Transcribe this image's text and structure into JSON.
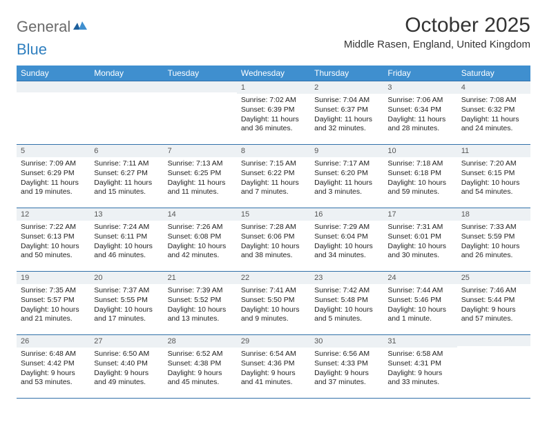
{
  "logo": {
    "part1": "General",
    "part2": "Blue"
  },
  "title": "October 2025",
  "location": "Middle Rasen, England, United Kingdom",
  "colors": {
    "header_bg": "#3f8fcf",
    "header_text": "#ffffff",
    "border": "#2f6fa8",
    "daynum_bg": "#edf1f4",
    "text": "#222222",
    "logo_gray": "#6a6a6a",
    "logo_blue": "#2f7fbf"
  },
  "typography": {
    "title_fontsize": 30,
    "location_fontsize": 15,
    "dayheader_fontsize": 12,
    "body_fontsize": 10.5
  },
  "day_headers": [
    "Sunday",
    "Monday",
    "Tuesday",
    "Wednesday",
    "Thursday",
    "Friday",
    "Saturday"
  ],
  "weeks": [
    [
      {
        "n": "",
        "sunrise": "",
        "sunset": "",
        "daylight": ""
      },
      {
        "n": "",
        "sunrise": "",
        "sunset": "",
        "daylight": ""
      },
      {
        "n": "",
        "sunrise": "",
        "sunset": "",
        "daylight": ""
      },
      {
        "n": "1",
        "sunrise": "Sunrise: 7:02 AM",
        "sunset": "Sunset: 6:39 PM",
        "daylight": "Daylight: 11 hours and 36 minutes."
      },
      {
        "n": "2",
        "sunrise": "Sunrise: 7:04 AM",
        "sunset": "Sunset: 6:37 PM",
        "daylight": "Daylight: 11 hours and 32 minutes."
      },
      {
        "n": "3",
        "sunrise": "Sunrise: 7:06 AM",
        "sunset": "Sunset: 6:34 PM",
        "daylight": "Daylight: 11 hours and 28 minutes."
      },
      {
        "n": "4",
        "sunrise": "Sunrise: 7:08 AM",
        "sunset": "Sunset: 6:32 PM",
        "daylight": "Daylight: 11 hours and 24 minutes."
      }
    ],
    [
      {
        "n": "5",
        "sunrise": "Sunrise: 7:09 AM",
        "sunset": "Sunset: 6:29 PM",
        "daylight": "Daylight: 11 hours and 19 minutes."
      },
      {
        "n": "6",
        "sunrise": "Sunrise: 7:11 AM",
        "sunset": "Sunset: 6:27 PM",
        "daylight": "Daylight: 11 hours and 15 minutes."
      },
      {
        "n": "7",
        "sunrise": "Sunrise: 7:13 AM",
        "sunset": "Sunset: 6:25 PM",
        "daylight": "Daylight: 11 hours and 11 minutes."
      },
      {
        "n": "8",
        "sunrise": "Sunrise: 7:15 AM",
        "sunset": "Sunset: 6:22 PM",
        "daylight": "Daylight: 11 hours and 7 minutes."
      },
      {
        "n": "9",
        "sunrise": "Sunrise: 7:17 AM",
        "sunset": "Sunset: 6:20 PM",
        "daylight": "Daylight: 11 hours and 3 minutes."
      },
      {
        "n": "10",
        "sunrise": "Sunrise: 7:18 AM",
        "sunset": "Sunset: 6:18 PM",
        "daylight": "Daylight: 10 hours and 59 minutes."
      },
      {
        "n": "11",
        "sunrise": "Sunrise: 7:20 AM",
        "sunset": "Sunset: 6:15 PM",
        "daylight": "Daylight: 10 hours and 54 minutes."
      }
    ],
    [
      {
        "n": "12",
        "sunrise": "Sunrise: 7:22 AM",
        "sunset": "Sunset: 6:13 PM",
        "daylight": "Daylight: 10 hours and 50 minutes."
      },
      {
        "n": "13",
        "sunrise": "Sunrise: 7:24 AM",
        "sunset": "Sunset: 6:11 PM",
        "daylight": "Daylight: 10 hours and 46 minutes."
      },
      {
        "n": "14",
        "sunrise": "Sunrise: 7:26 AM",
        "sunset": "Sunset: 6:08 PM",
        "daylight": "Daylight: 10 hours and 42 minutes."
      },
      {
        "n": "15",
        "sunrise": "Sunrise: 7:28 AM",
        "sunset": "Sunset: 6:06 PM",
        "daylight": "Daylight: 10 hours and 38 minutes."
      },
      {
        "n": "16",
        "sunrise": "Sunrise: 7:29 AM",
        "sunset": "Sunset: 6:04 PM",
        "daylight": "Daylight: 10 hours and 34 minutes."
      },
      {
        "n": "17",
        "sunrise": "Sunrise: 7:31 AM",
        "sunset": "Sunset: 6:01 PM",
        "daylight": "Daylight: 10 hours and 30 minutes."
      },
      {
        "n": "18",
        "sunrise": "Sunrise: 7:33 AM",
        "sunset": "Sunset: 5:59 PM",
        "daylight": "Daylight: 10 hours and 26 minutes."
      }
    ],
    [
      {
        "n": "19",
        "sunrise": "Sunrise: 7:35 AM",
        "sunset": "Sunset: 5:57 PM",
        "daylight": "Daylight: 10 hours and 21 minutes."
      },
      {
        "n": "20",
        "sunrise": "Sunrise: 7:37 AM",
        "sunset": "Sunset: 5:55 PM",
        "daylight": "Daylight: 10 hours and 17 minutes."
      },
      {
        "n": "21",
        "sunrise": "Sunrise: 7:39 AM",
        "sunset": "Sunset: 5:52 PM",
        "daylight": "Daylight: 10 hours and 13 minutes."
      },
      {
        "n": "22",
        "sunrise": "Sunrise: 7:41 AM",
        "sunset": "Sunset: 5:50 PM",
        "daylight": "Daylight: 10 hours and 9 minutes."
      },
      {
        "n": "23",
        "sunrise": "Sunrise: 7:42 AM",
        "sunset": "Sunset: 5:48 PM",
        "daylight": "Daylight: 10 hours and 5 minutes."
      },
      {
        "n": "24",
        "sunrise": "Sunrise: 7:44 AM",
        "sunset": "Sunset: 5:46 PM",
        "daylight": "Daylight: 10 hours and 1 minute."
      },
      {
        "n": "25",
        "sunrise": "Sunrise: 7:46 AM",
        "sunset": "Sunset: 5:44 PM",
        "daylight": "Daylight: 9 hours and 57 minutes."
      }
    ],
    [
      {
        "n": "26",
        "sunrise": "Sunrise: 6:48 AM",
        "sunset": "Sunset: 4:42 PM",
        "daylight": "Daylight: 9 hours and 53 minutes."
      },
      {
        "n": "27",
        "sunrise": "Sunrise: 6:50 AM",
        "sunset": "Sunset: 4:40 PM",
        "daylight": "Daylight: 9 hours and 49 minutes."
      },
      {
        "n": "28",
        "sunrise": "Sunrise: 6:52 AM",
        "sunset": "Sunset: 4:38 PM",
        "daylight": "Daylight: 9 hours and 45 minutes."
      },
      {
        "n": "29",
        "sunrise": "Sunrise: 6:54 AM",
        "sunset": "Sunset: 4:36 PM",
        "daylight": "Daylight: 9 hours and 41 minutes."
      },
      {
        "n": "30",
        "sunrise": "Sunrise: 6:56 AM",
        "sunset": "Sunset: 4:33 PM",
        "daylight": "Daylight: 9 hours and 37 minutes."
      },
      {
        "n": "31",
        "sunrise": "Sunrise: 6:58 AM",
        "sunset": "Sunset: 4:31 PM",
        "daylight": "Daylight: 9 hours and 33 minutes."
      },
      {
        "n": "",
        "sunrise": "",
        "sunset": "",
        "daylight": ""
      }
    ]
  ]
}
